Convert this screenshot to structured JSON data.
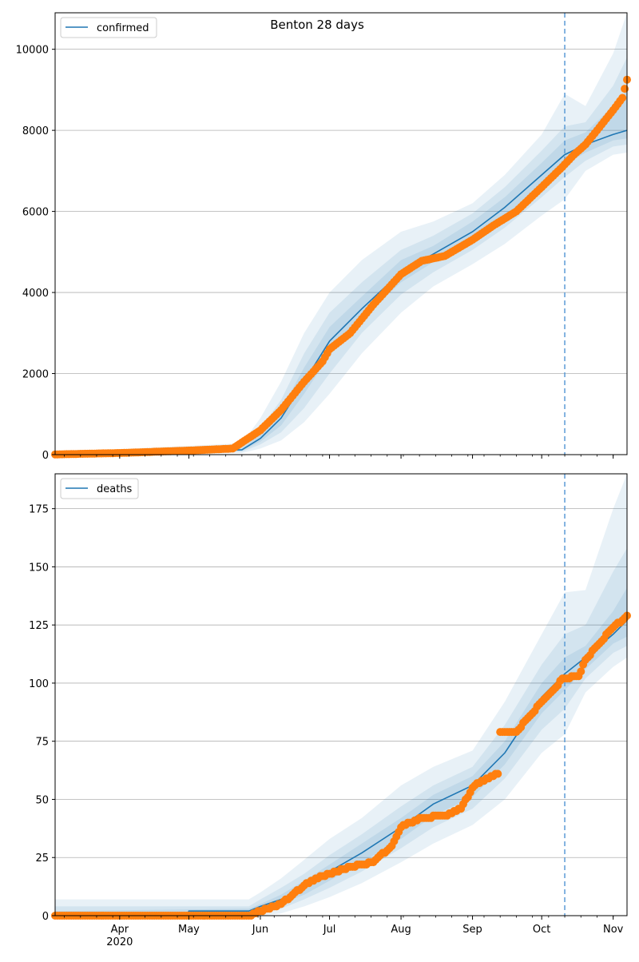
{
  "figure": {
    "title": "Benton 28 days",
    "x_month_labels": [
      "Apr",
      "May",
      "Jun",
      "Jul",
      "Aug",
      "Sep",
      "Oct",
      "Nov"
    ],
    "x_year_label": "2020"
  },
  "colors": {
    "model_line": "#1f77b4",
    "band": "#1f77b4",
    "observed": "#ff7f0e",
    "grid": "#b0b0b0",
    "vline": "#5b9bd5"
  },
  "chart_data": [
    {
      "type": "line",
      "name": "confirmed",
      "legend": [
        "confirmed"
      ],
      "legend_loc": "top-left",
      "x_axis": "date",
      "xlim": [
        "2020-03-04",
        "2020-11-07"
      ],
      "ylim": [
        0,
        10900
      ],
      "yticks": [
        0,
        2000,
        4000,
        6000,
        8000,
        10000
      ],
      "grid": "horizontal",
      "forecast_start": "2020-10-11",
      "model": {
        "x": [
          "2020-03-04",
          "2020-05-24",
          "2020-06-01",
          "2020-06-10",
          "2020-06-20",
          "2020-07-01",
          "2020-07-15",
          "2020-08-01",
          "2020-08-15",
          "2020-09-01",
          "2020-09-15",
          "2020-10-01",
          "2020-10-11",
          "2020-10-20",
          "2020-11-01",
          "2020-11-07"
        ],
        "y": [
          0,
          120,
          400,
          900,
          1800,
          2800,
          3600,
          4500,
          4950,
          5500,
          6100,
          6900,
          7400,
          7650,
          7900,
          8000
        ]
      },
      "bands": [
        {
          "x": [
            "2020-03-04",
            "2020-05-24",
            "2020-06-01",
            "2020-06-10",
            "2020-06-20",
            "2020-07-01",
            "2020-07-15",
            "2020-08-01",
            "2020-08-15",
            "2020-09-01",
            "2020-09-15",
            "2020-10-01",
            "2020-10-11",
            "2020-10-20",
            "2020-11-01",
            "2020-11-07"
          ],
          "low": [
            0,
            40,
            150,
            350,
            800,
            1500,
            2500,
            3500,
            4150,
            4700,
            5200,
            5900,
            6300,
            7000,
            7400,
            7450
          ],
          "high": [
            60,
            280,
            900,
            1800,
            3000,
            4000,
            4800,
            5500,
            5750,
            6200,
            6900,
            7900,
            8900,
            8600,
            9900,
            10900
          ]
        },
        {
          "x": [
            "2020-03-04",
            "2020-05-24",
            "2020-06-01",
            "2020-06-10",
            "2020-06-20",
            "2020-07-01",
            "2020-07-15",
            "2020-08-01",
            "2020-08-15",
            "2020-09-01",
            "2020-09-15",
            "2020-10-01",
            "2020-10-11",
            "2020-10-20",
            "2020-11-01",
            "2020-11-07"
          ],
          "low": [
            0,
            70,
            250,
            550,
            1150,
            2000,
            3000,
            3950,
            4500,
            5050,
            5600,
            6350,
            6850,
            7250,
            7600,
            7650
          ],
          "high": [
            30,
            200,
            650,
            1350,
            2500,
            3500,
            4250,
            5050,
            5400,
            5950,
            6600,
            7500,
            8100,
            8200,
            9100,
            9800
          ]
        },
        {
          "x": [
            "2020-03-04",
            "2020-05-24",
            "2020-06-01",
            "2020-06-10",
            "2020-06-20",
            "2020-07-01",
            "2020-07-15",
            "2020-08-01",
            "2020-08-15",
            "2020-09-01",
            "2020-09-15",
            "2020-10-01",
            "2020-10-11",
            "2020-10-20",
            "2020-11-01",
            "2020-11-07"
          ],
          "low": [
            0,
            95,
            320,
            720,
            1500,
            2450,
            3350,
            4250,
            4750,
            5300,
            5850,
            6650,
            7150,
            7450,
            7750,
            7800
          ],
          "high": [
            15,
            150,
            500,
            1100,
            2150,
            3150,
            3900,
            4800,
            5150,
            5750,
            6350,
            7200,
            7750,
            7950,
            8600,
            9000
          ]
        }
      ],
      "observed": {
        "x": [
          "2020-03-04",
          "2020-04-01",
          "2020-05-01",
          "2020-05-20",
          "2020-06-01",
          "2020-06-10",
          "2020-06-20",
          "2020-06-28",
          "2020-07-01",
          "2020-07-10",
          "2020-07-20",
          "2020-08-01",
          "2020-08-10",
          "2020-08-20",
          "2020-09-01",
          "2020-09-10",
          "2020-09-20",
          "2020-10-01",
          "2020-10-10",
          "2020-10-15",
          "2020-10-20",
          "2020-10-25",
          "2020-11-01",
          "2020-11-05",
          "2020-11-07"
        ],
        "y": [
          5,
          40,
          100,
          150,
          600,
          1100,
          1800,
          2300,
          2600,
          3000,
          3700,
          4450,
          4780,
          4900,
          5300,
          5650,
          6000,
          6600,
          7100,
          7400,
          7650,
          8000,
          8500,
          8800,
          9250
        ]
      }
    },
    {
      "type": "line",
      "name": "deaths",
      "legend": [
        "deaths"
      ],
      "legend_loc": "top-left",
      "x_axis": "date",
      "xlim": [
        "2020-03-04",
        "2020-11-07"
      ],
      "ylim": [
        0,
        190
      ],
      "yticks": [
        0,
        25,
        50,
        75,
        100,
        125,
        150,
        175
      ],
      "grid": "horizontal",
      "forecast_start": "2020-10-11",
      "model": {
        "x": [
          "2020-03-04",
          "2020-04-30",
          "2020-05-01",
          "2020-05-27",
          "2020-06-01",
          "2020-06-10",
          "2020-06-20",
          "2020-07-01",
          "2020-07-15",
          "2020-08-01",
          "2020-08-15",
          "2020-09-01",
          "2020-09-15",
          "2020-10-01",
          "2020-10-11",
          "2020-10-20",
          "2020-11-01",
          "2020-11-07"
        ],
        "y": [
          0,
          0,
          2,
          2,
          4,
          7,
          12,
          19,
          27,
          38,
          48,
          56,
          70,
          94,
          104,
          111,
          121,
          127
        ]
      },
      "bands": [
        {
          "x": [
            "2020-03-04",
            "2020-05-27",
            "2020-06-01",
            "2020-06-10",
            "2020-06-20",
            "2020-07-01",
            "2020-07-15",
            "2020-08-01",
            "2020-08-15",
            "2020-09-01",
            "2020-09-15",
            "2020-10-01",
            "2020-10-11",
            "2020-10-20",
            "2020-11-01",
            "2020-11-07"
          ],
          "low": [
            0,
            0,
            0,
            1,
            4,
            8,
            14,
            23,
            31,
            39,
            50,
            70,
            78,
            96,
            107,
            111
          ],
          "high": [
            7,
            7,
            10,
            16,
            24,
            33,
            42,
            56,
            64,
            71,
            92,
            121,
            139,
            140,
            175,
            190
          ]
        },
        {
          "x": [
            "2020-03-04",
            "2020-05-27",
            "2020-06-01",
            "2020-06-10",
            "2020-06-20",
            "2020-07-01",
            "2020-07-15",
            "2020-08-01",
            "2020-08-15",
            "2020-09-01",
            "2020-09-15",
            "2020-10-01",
            "2020-10-11",
            "2020-10-20",
            "2020-11-01",
            "2020-11-07"
          ],
          "low": [
            0,
            0,
            1,
            3,
            7,
            12,
            19,
            29,
            38,
            46,
            59,
            80,
            89,
            102,
            113,
            116
          ],
          "high": [
            4,
            4,
            7,
            12,
            18,
            26,
            35,
            47,
            56,
            64,
            82,
            108,
            121,
            125,
            148,
            158
          ]
        },
        {
          "x": [
            "2020-03-04",
            "2020-05-27",
            "2020-06-01",
            "2020-06-10",
            "2020-06-20",
            "2020-07-01",
            "2020-07-15",
            "2020-08-01",
            "2020-08-15",
            "2020-09-01",
            "2020-09-15",
            "2020-10-01",
            "2020-10-11",
            "2020-10-20",
            "2020-11-01",
            "2020-11-07"
          ],
          "low": [
            0,
            1,
            2,
            5,
            9,
            15,
            23,
            33,
            43,
            51,
            65,
            87,
            97,
            106,
            117,
            120
          ],
          "high": [
            2,
            3,
            5,
            9,
            15,
            22,
            31,
            42,
            52,
            60,
            75,
            100,
            111,
            116,
            131,
            141
          ]
        }
      ],
      "observed": {
        "x": [
          "2020-03-04",
          "2020-05-27",
          "2020-06-01",
          "2020-06-10",
          "2020-06-20",
          "2020-06-28",
          "2020-07-01",
          "2020-07-10",
          "2020-07-20",
          "2020-07-28",
          "2020-08-01",
          "2020-08-05",
          "2020-08-10",
          "2020-08-20",
          "2020-08-27",
          "2020-09-01",
          "2020-09-05",
          "2020-09-12",
          "2020-09-13",
          "2020-09-20",
          "2020-10-01",
          "2020-10-07",
          "2020-10-10",
          "2020-10-17",
          "2020-10-20",
          "2020-10-25",
          "2020-11-01",
          "2020-11-05",
          "2020-11-07"
        ],
        "y": [
          0,
          0,
          2,
          5,
          13,
          17,
          18,
          21,
          23,
          30,
          38,
          40,
          42,
          43,
          46,
          55,
          58,
          61,
          79,
          79,
          92,
          98,
          102,
          103,
          110,
          116,
          124,
          127,
          129
        ]
      }
    }
  ]
}
